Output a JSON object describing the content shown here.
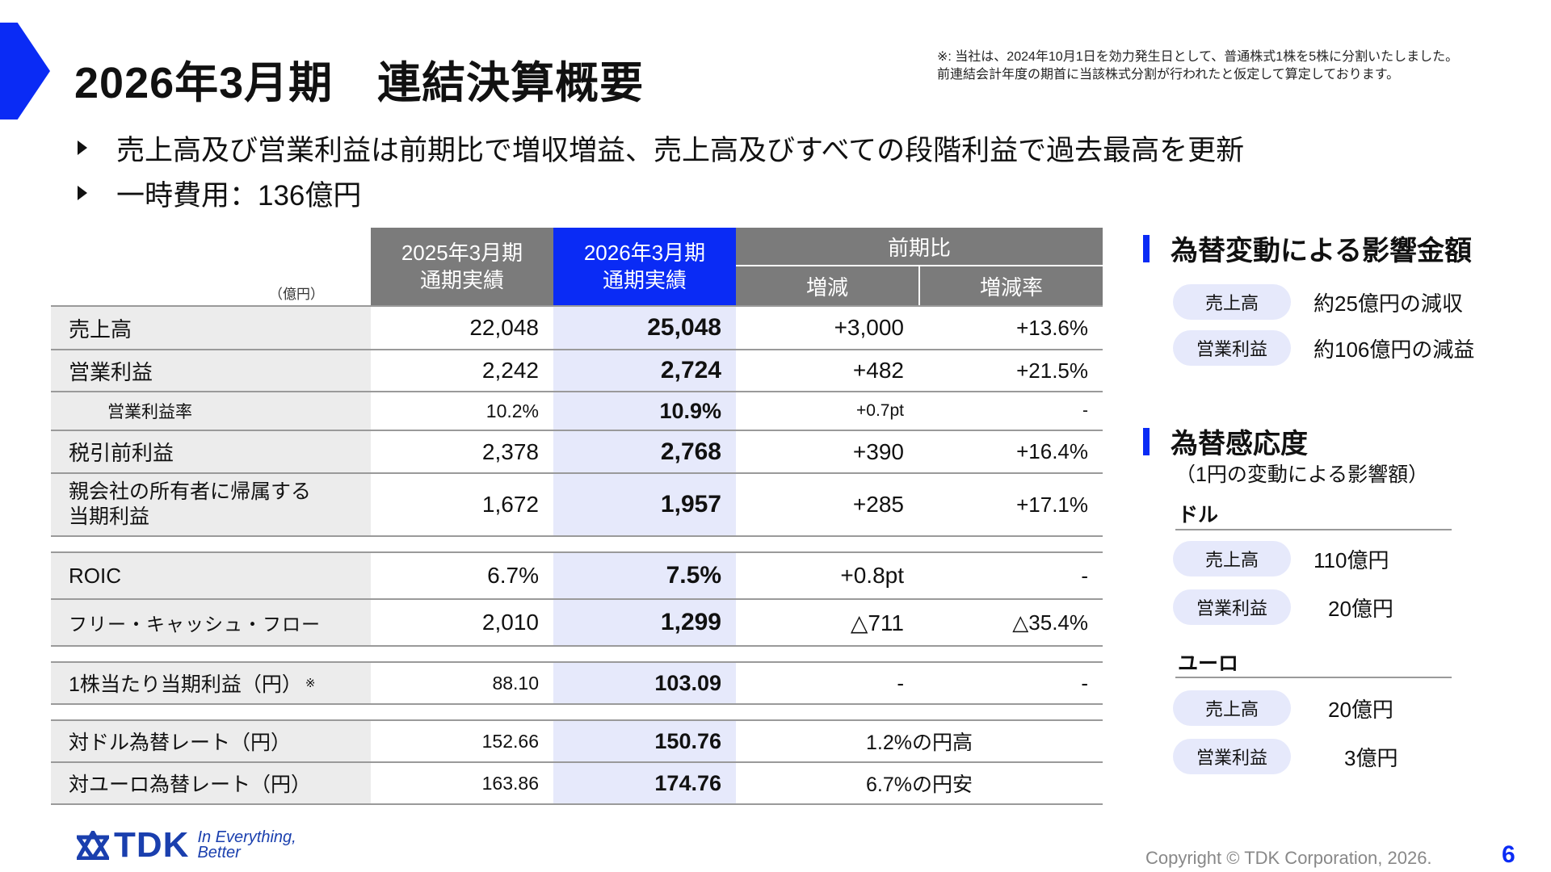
{
  "title": "2026年3月期　連結決算概要",
  "note": {
    "line1": "※: 当社は、2024年10月1日を効力発生日として、普通株式1株を5株に分割いたしました。",
    "line2": "前連結会計年度の期首に当該株式分割が行われたと仮定して算定しております。"
  },
  "bullets": [
    "売上高及び営業利益は前期比で増収増益、売上高及びすべての段階利益で過去最高を更新",
    "一時費用：136億円"
  ],
  "table": {
    "unit": "（億円）",
    "col_prev": [
      "2025年3月期",
      "通期実績"
    ],
    "col_curr": [
      "2026年3月期",
      "通期実績"
    ],
    "col_compare": "前期比",
    "col_diff": "増減",
    "col_rate": "増減率",
    "rows": [
      {
        "label": "売上高",
        "prev": "22,048",
        "curr": "25,048",
        "diff": "+3,000",
        "rate": "+13.6%"
      },
      {
        "label": "営業利益",
        "prev": "2,242",
        "curr": "2,724",
        "diff": "+482",
        "rate": "+21.5%"
      },
      {
        "label": "営業利益率",
        "prev": "10.2%",
        "curr": "10.9%",
        "diff": "+0.7pt",
        "rate": "-"
      },
      {
        "label": "税引前利益",
        "prev": "2,378",
        "curr": "2,768",
        "diff": "+390",
        "rate": "+16.4%"
      },
      {
        "label1": "親会社の所有者に帰属する",
        "label2": "当期利益",
        "prev": "1,672",
        "curr": "1,957",
        "diff": "+285",
        "rate": "+17.1%"
      },
      {
        "label": "ROIC",
        "prev": "6.7%",
        "curr": "7.5%",
        "diff": "+0.8pt",
        "rate": "-"
      },
      {
        "label": "フリー・キャッシュ・フロー",
        "prev": "2,010",
        "curr": "1,299",
        "diff": "△711",
        "rate": "△35.4%"
      },
      {
        "label": "1株当たり当期利益（円）",
        "mark": "※",
        "prev": "88.10",
        "curr": "103.09",
        "diff": "-",
        "rate": "-"
      },
      {
        "label": "対ドル為替レート（円）",
        "prev": "152.66",
        "curr": "150.76",
        "span": "1.2%の円高"
      },
      {
        "label": "対ユーロ為替レート（円）",
        "prev": "163.86",
        "curr": "174.76",
        "span": "6.7%の円安"
      }
    ]
  },
  "fx_impact": {
    "heading": "為替変動による影響金額",
    "items": [
      {
        "label": "売上高",
        "value": "約25億円の減収"
      },
      {
        "label": "営業利益",
        "value": "約106億円の減益"
      }
    ]
  },
  "fx_sensitivity": {
    "heading": "為替感応度",
    "subnote": "（1円の変動による影響額）",
    "usd": {
      "label": "ドル",
      "items": [
        {
          "label": "売上高",
          "value": "110億円"
        },
        {
          "label": "営業利益",
          "value": "20億円"
        }
      ]
    },
    "eur": {
      "label": "ユーロ",
      "items": [
        {
          "label": "売上高",
          "value": "20億円"
        },
        {
          "label": "営業利益",
          "value": "3億円"
        }
      ]
    }
  },
  "footer": {
    "logo": "TDK",
    "tagline1": "In Everything,",
    "tagline2": "Better",
    "copyright": "Copyright © TDK Corporation, 2026.",
    "page": "6"
  },
  "colors": {
    "accent": "#0a2bf5",
    "header_gray": "#7b7b7b",
    "highlight": "#e6e9fb",
    "label_bg": "#ececec"
  }
}
